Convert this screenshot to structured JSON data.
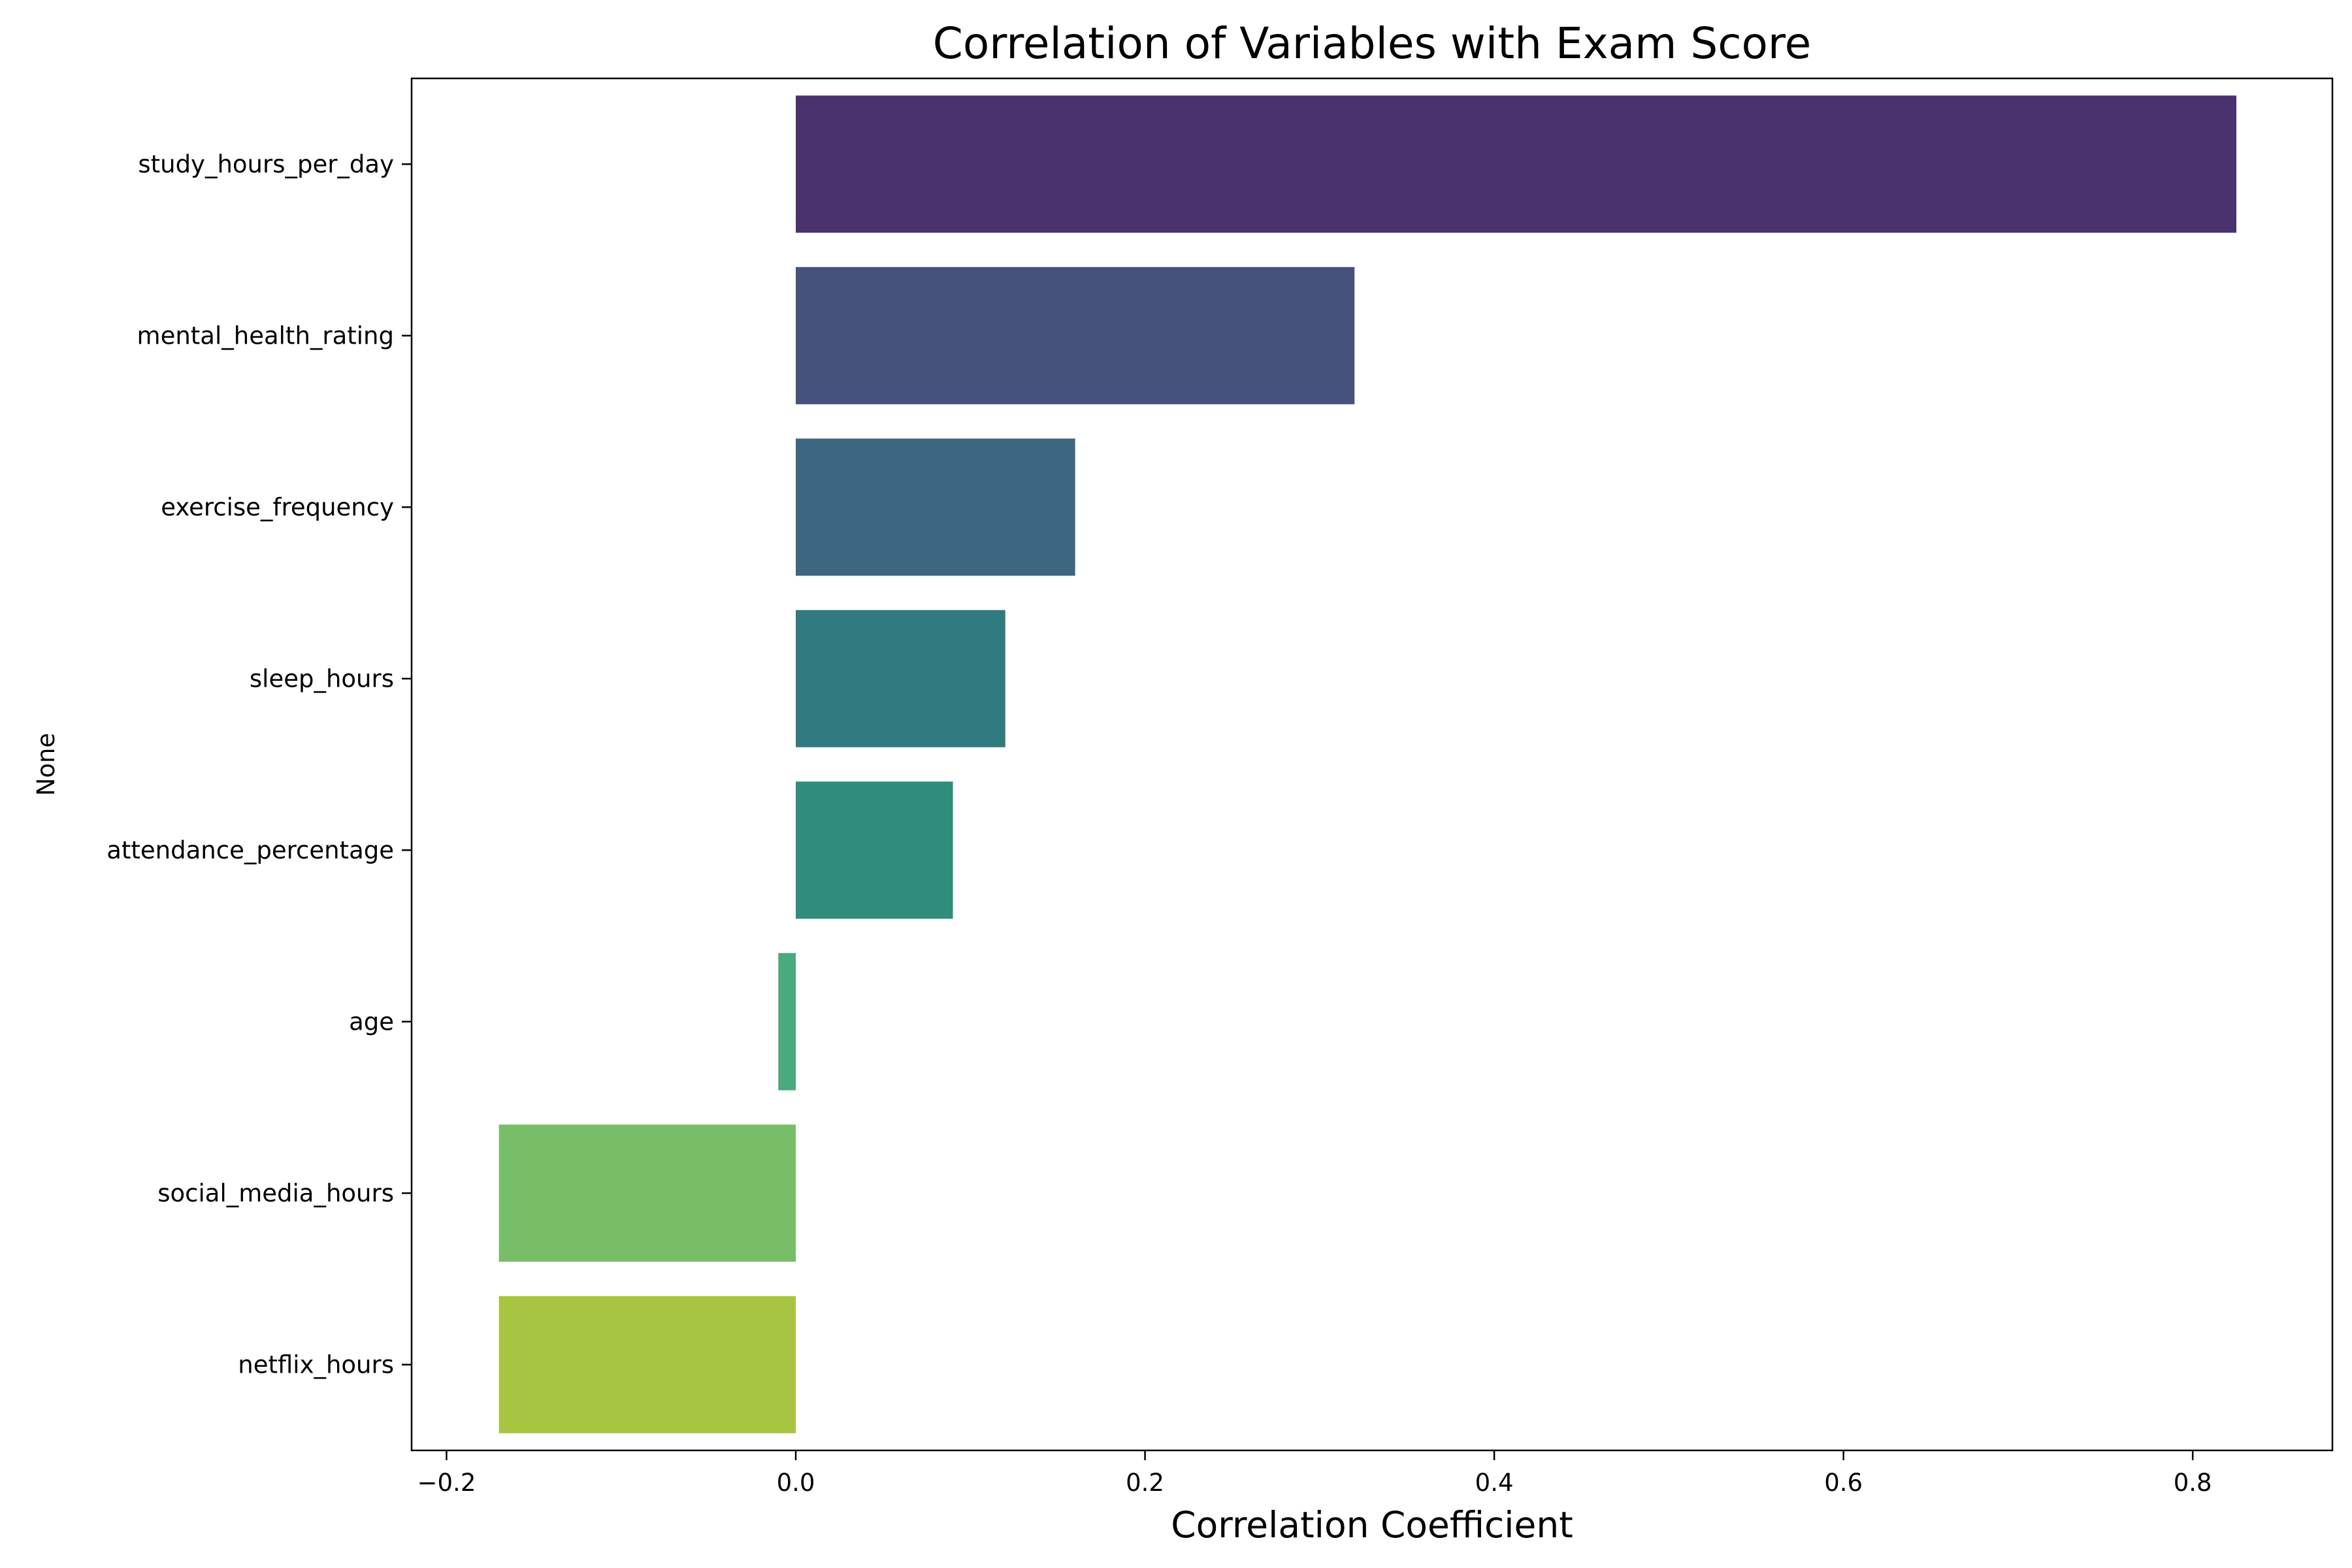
{
  "chart_data": {
    "type": "bar",
    "orientation": "horizontal",
    "title": "Correlation of Variables with Exam Score",
    "xlabel": "Correlation Coefficient",
    "ylabel": "None",
    "categories": [
      "study_hours_per_day",
      "mental_health_rating",
      "exercise_frequency",
      "sleep_hours",
      "attendance_percentage",
      "age",
      "social_media_hours",
      "netflix_hours"
    ],
    "values": [
      0.825,
      0.32,
      0.16,
      0.12,
      0.09,
      -0.01,
      -0.17,
      -0.17
    ],
    "colors": [
      "#4a326e",
      "#46517c",
      "#3d6680",
      "#317a80",
      "#2e8d7c",
      "#4aa97d",
      "#78bd68",
      "#a7c540"
    ],
    "xlim": [
      -0.22,
      0.88
    ],
    "xticks": [
      -0.2,
      0.0,
      0.2,
      0.4,
      0.6,
      0.8
    ],
    "xtick_labels": [
      "−0.2",
      "0.0",
      "0.2",
      "0.4",
      "0.6",
      "0.8"
    ],
    "grid": false,
    "legend": "none"
  }
}
